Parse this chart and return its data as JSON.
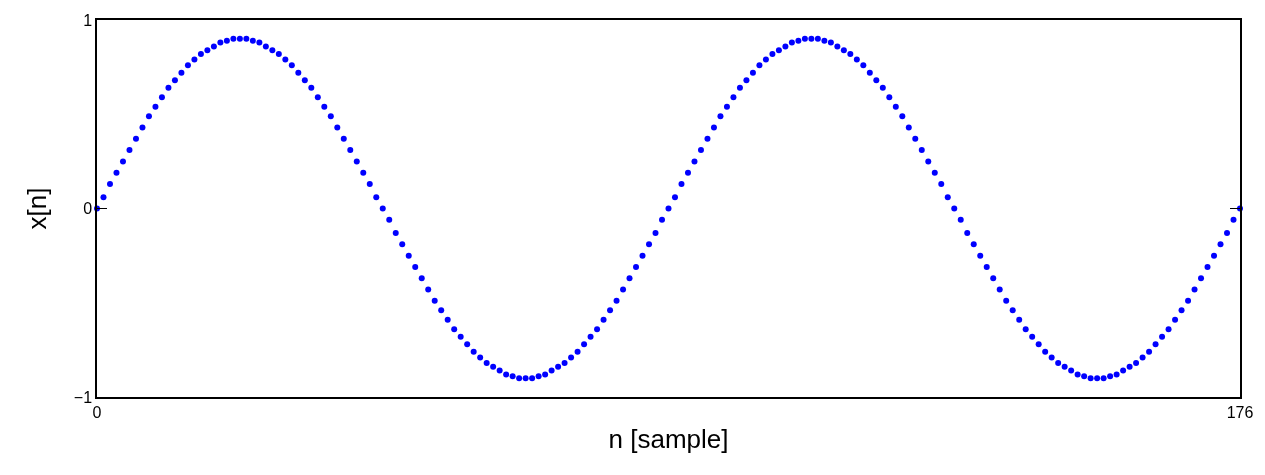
{
  "chart_data": {
    "type": "scatter",
    "xlabel": "n [sample]",
    "ylabel": "x[n]",
    "x": [
      0,
      1,
      2,
      3,
      4,
      5,
      6,
      7,
      8,
      9,
      10,
      11,
      12,
      13,
      14,
      15,
      16,
      17,
      18,
      19,
      20,
      21,
      22,
      23,
      24,
      25,
      26,
      27,
      28,
      29,
      30,
      31,
      32,
      33,
      34,
      35,
      36,
      37,
      38,
      39,
      40,
      41,
      42,
      43,
      44,
      45,
      46,
      47,
      48,
      49,
      50,
      51,
      52,
      53,
      54,
      55,
      56,
      57,
      58,
      59,
      60,
      61,
      62,
      63,
      64,
      65,
      66,
      67,
      68,
      69,
      70,
      71,
      72,
      73,
      74,
      75,
      76,
      77,
      78,
      79,
      80,
      81,
      82,
      83,
      84,
      85,
      86,
      87,
      88,
      89,
      90,
      91,
      92,
      93,
      94,
      95,
      96,
      97,
      98,
      99,
      100,
      101,
      102,
      103,
      104,
      105,
      106,
      107,
      108,
      109,
      110,
      111,
      112,
      113,
      114,
      115,
      116,
      117,
      118,
      119,
      120,
      121,
      122,
      123,
      124,
      125,
      126,
      127,
      128,
      129,
      130,
      131,
      132,
      133,
      134,
      135,
      136,
      137,
      138,
      139,
      140,
      141,
      142,
      143,
      144,
      145,
      146,
      147,
      148,
      149,
      150,
      151,
      152,
      153,
      154,
      155,
      156,
      157,
      158,
      159,
      160,
      161,
      162,
      163,
      164,
      165,
      166,
      167,
      168,
      169,
      170,
      171,
      172,
      173,
      174,
      175,
      176
    ],
    "series": [
      {
        "color": "#0000ff",
        "values": [
          0,
          0.06,
          0.13,
          0.19,
          0.25,
          0.31,
          0.37,
          0.43,
          0.49,
          0.54,
          0.59,
          0.64,
          0.68,
          0.72,
          0.76,
          0.79,
          0.82,
          0.84,
          0.86,
          0.88,
          0.89,
          0.9,
          0.9,
          0.9,
          0.89,
          0.88,
          0.86,
          0.84,
          0.82,
          0.79,
          0.76,
          0.72,
          0.68,
          0.64,
          0.59,
          0.54,
          0.49,
          0.43,
          0.37,
          0.31,
          0.25,
          0.19,
          0.13,
          0.06,
          0,
          -0.06,
          -0.13,
          -0.19,
          -0.25,
          -0.31,
          -0.37,
          -0.43,
          -0.49,
          -0.54,
          -0.59,
          -0.64,
          -0.68,
          -0.72,
          -0.76,
          -0.79,
          -0.82,
          -0.84,
          -0.86,
          -0.88,
          -0.89,
          -0.9,
          -0.9,
          -0.9,
          -0.89,
          -0.88,
          -0.86,
          -0.84,
          -0.82,
          -0.79,
          -0.76,
          -0.72,
          -0.68,
          -0.64,
          -0.59,
          -0.54,
          -0.49,
          -0.43,
          -0.37,
          -0.31,
          -0.25,
          -0.19,
          -0.13,
          -0.06,
          0,
          0.06,
          0.13,
          0.19,
          0.25,
          0.31,
          0.37,
          0.43,
          0.49,
          0.54,
          0.59,
          0.64,
          0.68,
          0.72,
          0.76,
          0.79,
          0.82,
          0.84,
          0.86,
          0.88,
          0.89,
          0.9,
          0.9,
          0.9,
          0.89,
          0.88,
          0.86,
          0.84,
          0.82,
          0.79,
          0.76,
          0.72,
          0.68,
          0.64,
          0.59,
          0.54,
          0.49,
          0.43,
          0.37,
          0.31,
          0.25,
          0.19,
          0.13,
          0.06,
          0,
          -0.06,
          -0.13,
          -0.19,
          -0.25,
          -0.31,
          -0.37,
          -0.43,
          -0.49,
          -0.54,
          -0.59,
          -0.64,
          -0.68,
          -0.72,
          -0.76,
          -0.79,
          -0.82,
          -0.84,
          -0.86,
          -0.88,
          -0.89,
          -0.9,
          -0.9,
          -0.9,
          -0.89,
          -0.88,
          -0.86,
          -0.84,
          -0.82,
          -0.79,
          -0.76,
          -0.72,
          -0.68,
          -0.64,
          -0.59,
          -0.54,
          -0.49,
          -0.43,
          -0.37,
          -0.31,
          -0.25,
          -0.19,
          -0.13,
          -0.06,
          0
        ]
      }
    ],
    "xlim": [
      0,
      176
    ],
    "xticks": [
      0,
      176
    ],
    "ylim": [
      -1,
      1
    ],
    "yticks": [
      {
        "value": -1,
        "label": "−1"
      },
      0,
      1
    ],
    "marker": "circle"
  }
}
